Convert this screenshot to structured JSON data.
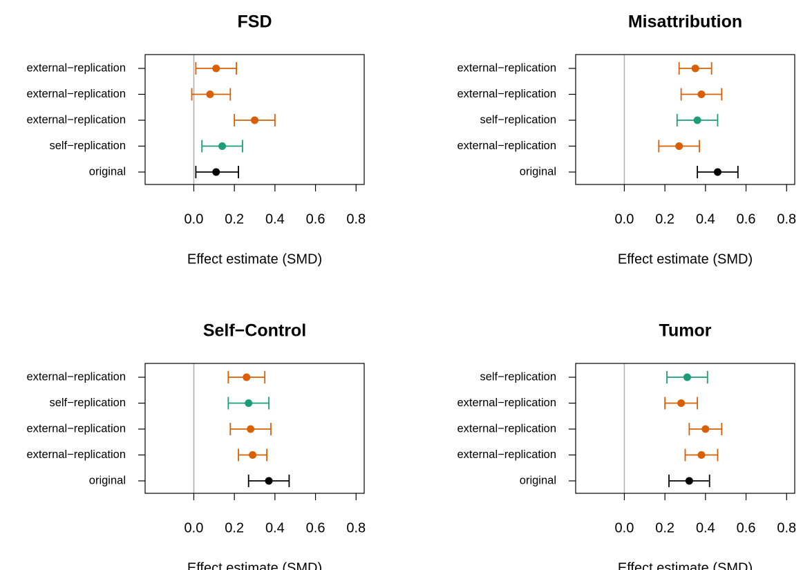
{
  "colors": {
    "original": "#000000",
    "self-replication": "#1b9e77",
    "external-replication": "#d95f02",
    "reference_line": "#b3b3b3"
  },
  "chart_data": [
    {
      "type": "forest",
      "title": "FSD",
      "xlabel": "Effect estimate (SMD)",
      "xlim": [
        -0.2,
        0.8
      ],
      "xticks": [
        "0.0",
        "0.2",
        "0.4",
        "0.6",
        "0.8"
      ],
      "reference_line": 0,
      "rows": [
        {
          "label": "external−replication",
          "kind": "external-replication",
          "est": 0.11,
          "lo": 0.01,
          "hi": 0.21
        },
        {
          "label": "external−replication",
          "kind": "external-replication",
          "est": 0.08,
          "lo": -0.01,
          "hi": 0.18
        },
        {
          "label": "external−replication",
          "kind": "external-replication",
          "est": 0.3,
          "lo": 0.2,
          "hi": 0.4
        },
        {
          "label": "self−replication",
          "kind": "self-replication",
          "est": 0.14,
          "lo": 0.04,
          "hi": 0.24
        },
        {
          "label": "original",
          "kind": "original",
          "est": 0.11,
          "lo": 0.01,
          "hi": 0.22
        }
      ]
    },
    {
      "type": "forest",
      "title": "Misattribution",
      "xlabel": "Effect estimate (SMD)",
      "xlim": [
        -0.2,
        0.8
      ],
      "xticks": [
        "0.0",
        "0.2",
        "0.4",
        "0.6",
        "0.8"
      ],
      "reference_line": 0,
      "rows": [
        {
          "label": "external−replication",
          "kind": "external-replication",
          "est": 0.35,
          "lo": 0.27,
          "hi": 0.43
        },
        {
          "label": "external−replication",
          "kind": "external-replication",
          "est": 0.38,
          "lo": 0.28,
          "hi": 0.48
        },
        {
          "label": "self−replication",
          "kind": "self-replication",
          "est": 0.36,
          "lo": 0.26,
          "hi": 0.46
        },
        {
          "label": "external−replication",
          "kind": "external-replication",
          "est": 0.27,
          "lo": 0.17,
          "hi": 0.37
        },
        {
          "label": "original",
          "kind": "original",
          "est": 0.46,
          "lo": 0.36,
          "hi": 0.56
        }
      ]
    },
    {
      "type": "forest",
      "title": "Self−Control",
      "xlabel": "Effect estimate (SMD)",
      "xlim": [
        -0.2,
        0.8
      ],
      "xticks": [
        "0.0",
        "0.2",
        "0.4",
        "0.6",
        "0.8"
      ],
      "reference_line": 0,
      "rows": [
        {
          "label": "external−replication",
          "kind": "external-replication",
          "est": 0.26,
          "lo": 0.17,
          "hi": 0.35
        },
        {
          "label": "self−replication",
          "kind": "self-replication",
          "est": 0.27,
          "lo": 0.17,
          "hi": 0.37
        },
        {
          "label": "external−replication",
          "kind": "external-replication",
          "est": 0.28,
          "lo": 0.18,
          "hi": 0.38
        },
        {
          "label": "external−replication",
          "kind": "external-replication",
          "est": 0.29,
          "lo": 0.22,
          "hi": 0.36
        },
        {
          "label": "original",
          "kind": "original",
          "est": 0.37,
          "lo": 0.27,
          "hi": 0.47
        }
      ]
    },
    {
      "type": "forest",
      "title": "Tumor",
      "xlabel": "Effect estimate (SMD)",
      "xlim": [
        -0.2,
        0.8
      ],
      "xticks": [
        "0.0",
        "0.2",
        "0.4",
        "0.6",
        "0.8"
      ],
      "reference_line": 0,
      "rows": [
        {
          "label": "self−replication",
          "kind": "self-replication",
          "est": 0.31,
          "lo": 0.21,
          "hi": 0.41
        },
        {
          "label": "external−replication",
          "kind": "external-replication",
          "est": 0.28,
          "lo": 0.2,
          "hi": 0.36
        },
        {
          "label": "external−replication",
          "kind": "external-replication",
          "est": 0.4,
          "lo": 0.32,
          "hi": 0.48
        },
        {
          "label": "external−replication",
          "kind": "external-replication",
          "est": 0.38,
          "lo": 0.3,
          "hi": 0.46
        },
        {
          "label": "original",
          "kind": "original",
          "est": 0.32,
          "lo": 0.22,
          "hi": 0.42
        }
      ]
    }
  ]
}
